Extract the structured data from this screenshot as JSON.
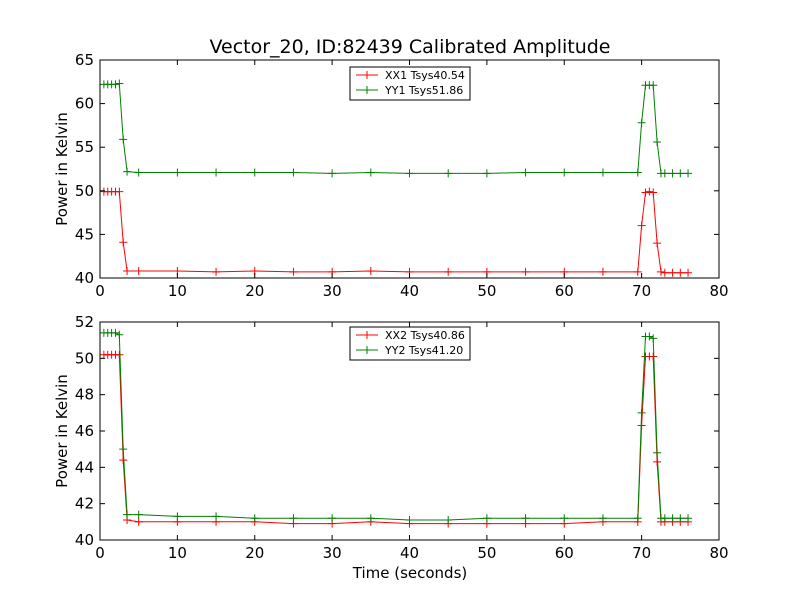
{
  "chart_data": [
    {
      "type": "line",
      "title": "Vector_20, ID:82439 Calibrated Amplitude",
      "xlabel": "",
      "ylabel": "Power in Kelvin",
      "xlim": [
        0,
        80
      ],
      "ylim": [
        40,
        65
      ],
      "xticks": [
        "0",
        "10",
        "20",
        "30",
        "40",
        "50",
        "60",
        "70",
        "80"
      ],
      "yticks": [
        "40",
        "45",
        "50",
        "55",
        "60",
        "65"
      ],
      "grid": false,
      "legend_position": "top-center",
      "marker": "+",
      "series": [
        {
          "name": "XX1 Tsys40.54",
          "color": "#ff0000",
          "x": [
            0.5,
            1.0,
            1.5,
            2.0,
            2.5,
            3.0,
            3.5,
            5,
            10,
            15,
            20,
            25,
            30,
            35,
            40,
            45,
            50,
            55,
            60,
            65,
            69.5,
            70.0,
            70.5,
            71.0,
            71.5,
            72.0,
            72.5,
            73.0,
            74,
            75,
            76
          ],
          "y": [
            49.9,
            49.9,
            49.9,
            49.9,
            49.9,
            44.1,
            40.8,
            40.8,
            40.8,
            40.7,
            40.8,
            40.7,
            40.7,
            40.8,
            40.7,
            40.7,
            40.7,
            40.7,
            40.7,
            40.7,
            40.7,
            46.0,
            49.8,
            49.9,
            49.8,
            44.0,
            40.7,
            40.6,
            40.6,
            40.6,
            40.6
          ]
        },
        {
          "name": "YY1 Tsys51.86",
          "color": "#008000",
          "x": [
            0.5,
            1.0,
            1.5,
            2.0,
            2.5,
            3.0,
            3.5,
            5,
            10,
            15,
            20,
            25,
            30,
            35,
            40,
            45,
            50,
            55,
            60,
            65,
            69.5,
            70.0,
            70.5,
            71.0,
            71.5,
            72.0,
            72.5,
            73.0,
            74,
            75,
            76
          ],
          "y": [
            62.2,
            62.2,
            62.2,
            62.2,
            62.3,
            55.9,
            52.2,
            52.1,
            52.1,
            52.1,
            52.1,
            52.1,
            52.0,
            52.1,
            52.0,
            52.0,
            52.0,
            52.1,
            52.1,
            52.1,
            52.1,
            57.8,
            62.1,
            62.1,
            62.1,
            55.6,
            52.0,
            52.0,
            52.0,
            52.0,
            52.0
          ]
        }
      ]
    },
    {
      "type": "line",
      "title": "",
      "xlabel": "Time (seconds)",
      "ylabel": "Power in Kelvin",
      "xlim": [
        0,
        80
      ],
      "ylim": [
        40,
        52
      ],
      "xticks": [
        "0",
        "10",
        "20",
        "30",
        "40",
        "50",
        "60",
        "70",
        "80"
      ],
      "yticks": [
        "40",
        "42",
        "44",
        "46",
        "48",
        "50",
        "52"
      ],
      "grid": false,
      "legend_position": "top-center",
      "marker": "+",
      "series": [
        {
          "name": "XX2 Tsys40.86",
          "color": "#ff0000",
          "x": [
            0.5,
            1.0,
            1.5,
            2.0,
            2.5,
            3.0,
            3.5,
            5,
            10,
            15,
            20,
            25,
            30,
            35,
            40,
            45,
            50,
            55,
            60,
            65,
            69.5,
            70.0,
            70.5,
            71.0,
            71.5,
            72.0,
            72.5,
            73.0,
            74,
            75,
            76
          ],
          "y": [
            50.2,
            50.2,
            50.2,
            50.2,
            50.2,
            44.4,
            41.1,
            41.0,
            41.0,
            41.0,
            41.0,
            40.9,
            40.9,
            41.0,
            40.9,
            40.9,
            40.9,
            40.9,
            40.9,
            41.0,
            41.0,
            46.3,
            50.1,
            50.1,
            50.1,
            44.3,
            41.0,
            41.0,
            41.0,
            41.0,
            41.0
          ]
        },
        {
          "name": "YY2 Tsys41.20",
          "color": "#008000",
          "x": [
            0.5,
            1.0,
            1.5,
            2.0,
            2.5,
            3.0,
            3.5,
            5,
            10,
            15,
            20,
            25,
            30,
            35,
            40,
            45,
            50,
            55,
            60,
            65,
            69.5,
            70.0,
            70.5,
            71.0,
            71.5,
            72.0,
            72.5,
            73.0,
            74,
            75,
            76
          ],
          "y": [
            51.4,
            51.4,
            51.4,
            51.4,
            51.3,
            45.0,
            41.4,
            41.4,
            41.3,
            41.3,
            41.2,
            41.2,
            41.2,
            41.2,
            41.1,
            41.1,
            41.2,
            41.2,
            41.2,
            41.2,
            41.2,
            47.0,
            51.2,
            51.2,
            51.1,
            44.8,
            41.2,
            41.2,
            41.2,
            41.2,
            41.2
          ]
        }
      ]
    }
  ]
}
